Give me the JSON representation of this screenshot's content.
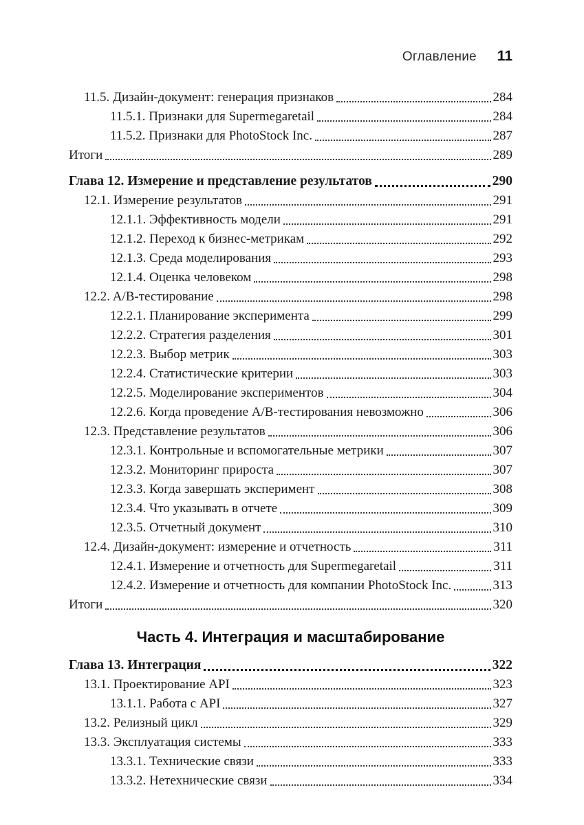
{
  "header": {
    "title": "Оглавление",
    "page_number": "11"
  },
  "toc": [
    {
      "type": "item",
      "level": 1,
      "label": "11.5. Дизайн-документ: генерация признаков",
      "page": "284"
    },
    {
      "type": "item",
      "level": 2,
      "label": "11.5.1. Признаки для Supermegaretail",
      "page": "284"
    },
    {
      "type": "item",
      "level": 2,
      "label": "11.5.2. Признаки для PhotoStock Inc.",
      "page": "287"
    },
    {
      "type": "item",
      "level": 0,
      "label": "Итоги",
      "page": "289"
    },
    {
      "type": "chapter",
      "level": 0,
      "label": "Глава 12. Измерение и представление результатов",
      "page": "290"
    },
    {
      "type": "item",
      "level": 1,
      "label": "12.1. Измерение результатов",
      "page": "291"
    },
    {
      "type": "item",
      "level": 2,
      "label": "12.1.1. Эффективность модели",
      "page": "291"
    },
    {
      "type": "item",
      "level": 2,
      "label": "12.1.2. Переход к бизнес-метрикам",
      "page": "292"
    },
    {
      "type": "item",
      "level": 2,
      "label": "12.1.3. Среда моделирования",
      "page": "293"
    },
    {
      "type": "item",
      "level": 2,
      "label": "12.1.4. Оценка человеком",
      "page": "298"
    },
    {
      "type": "item",
      "level": 1,
      "label": "12.2. A/B-тестирование",
      "page": "298"
    },
    {
      "type": "item",
      "level": 2,
      "label": "12.2.1. Планирование эксперимента",
      "page": "299"
    },
    {
      "type": "item",
      "level": 2,
      "label": "12.2.2. Стратегия разделения",
      "page": "301"
    },
    {
      "type": "item",
      "level": 2,
      "label": "12.2.3. Выбор метрик",
      "page": "303"
    },
    {
      "type": "item",
      "level": 2,
      "label": "12.2.4. Статистические критерии",
      "page": "303"
    },
    {
      "type": "item",
      "level": 2,
      "label": "12.2.5. Моделирование экспериментов",
      "page": "304"
    },
    {
      "type": "item",
      "level": 2,
      "label": "12.2.6. Когда проведение A/B-тестирования невозможно",
      "page": "306"
    },
    {
      "type": "item",
      "level": 1,
      "label": "12.3. Представление результатов",
      "page": "306"
    },
    {
      "type": "item",
      "level": 2,
      "label": "12.3.1. Контрольные и вспомогательные метрики",
      "page": "307"
    },
    {
      "type": "item",
      "level": 2,
      "label": "12.3.2. Мониторинг прироста",
      "page": "307"
    },
    {
      "type": "item",
      "level": 2,
      "label": "12.3.3. Когда завершать эксперимент",
      "page": "308"
    },
    {
      "type": "item",
      "level": 2,
      "label": "12.3.4. Что указывать в отчете",
      "page": "309"
    },
    {
      "type": "item",
      "level": 2,
      "label": "12.3.5. Отчетный документ",
      "page": "310"
    },
    {
      "type": "item",
      "level": 1,
      "label": "12.4. Дизайн-документ: измерение и отчетность",
      "page": "311"
    },
    {
      "type": "item",
      "level": 2,
      "label": "12.4.1. Измерение и отчетность для Supermegaretail",
      "page": "311"
    },
    {
      "type": "item",
      "level": 2,
      "label": "12.4.2. Измерение и отчетность для компании PhotoStock Inc.",
      "page": "313"
    },
    {
      "type": "item",
      "level": 0,
      "label": "Итоги",
      "page": "320"
    },
    {
      "type": "part",
      "label": "Часть 4. Интеграция и масштабирование"
    },
    {
      "type": "chapter",
      "level": 0,
      "label": "Глава 13. Интеграция",
      "page": "322"
    },
    {
      "type": "item",
      "level": 1,
      "label": "13.1. Проектирование API",
      "page": "323"
    },
    {
      "type": "item",
      "level": 2,
      "label": "13.1.1. Работа с API",
      "page": "327"
    },
    {
      "type": "item",
      "level": 1,
      "label": "13.2. Релизный цикл",
      "page": "329"
    },
    {
      "type": "item",
      "level": 1,
      "label": "13.3. Эксплуатация системы",
      "page": "333"
    },
    {
      "type": "item",
      "level": 2,
      "label": "13.3.1. Технические связи",
      "page": "333"
    },
    {
      "type": "item",
      "level": 2,
      "label": "13.3.2. Нетехнические связи",
      "page": "334"
    }
  ]
}
